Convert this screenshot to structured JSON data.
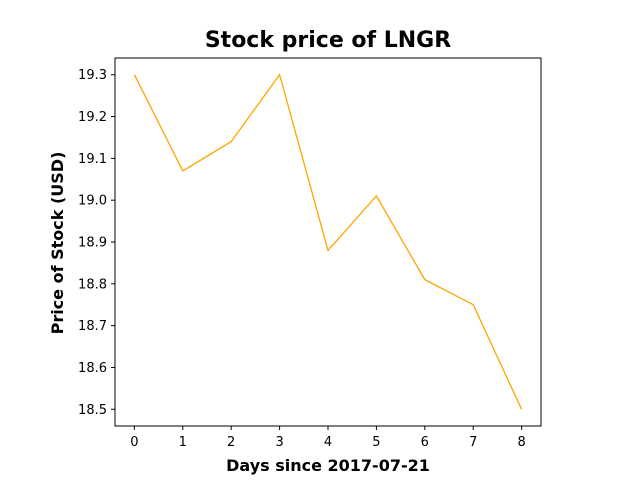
{
  "chart_data": {
    "type": "line",
    "title": "Stock price of LNGR",
    "xlabel": "Days since 2017-07-21",
    "ylabel": "Price of Stock (USD)",
    "x": [
      0,
      1,
      2,
      3,
      4,
      5,
      6,
      7,
      8
    ],
    "series": [
      {
        "values": [
          19.3,
          19.07,
          19.14,
          19.3,
          18.88,
          19.01,
          18.81,
          18.75,
          18.5
        ],
        "color": "#ffa500"
      }
    ],
    "xticks": [
      "0",
      "1",
      "2",
      "3",
      "4",
      "5",
      "6",
      "7",
      "8"
    ],
    "yticks": [
      "18.5",
      "18.6",
      "18.7",
      "18.8",
      "18.9",
      "19.0",
      "19.1",
      "19.2",
      "19.3"
    ],
    "xlim": [
      -0.4,
      8.4
    ],
    "ylim": [
      18.46,
      19.34
    ],
    "grid": false,
    "legend": "none"
  }
}
